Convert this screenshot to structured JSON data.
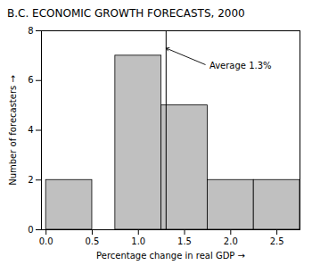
{
  "chart_data": {
    "type": "bar",
    "title": "B.C. ECONOMIC GROWTH FORECASTS, 2000",
    "xlabel": "Percentage change in real GDP",
    "ylabel": "Number of forecasters",
    "x": [
      0.0,
      0.75,
      1.25,
      1.75,
      2.25
    ],
    "x_end": [
      0.5,
      1.25,
      1.75,
      2.25,
      2.75
    ],
    "values": [
      2,
      7,
      5,
      2,
      2
    ],
    "color": "#c0c0c0",
    "reference_line": {
      "x": 1.3
    },
    "annotations": [
      {
        "text": "Average 1.3%",
        "x": 1.75,
        "y": 6.6,
        "arrow_x": 1.3,
        "arrow_y": 7.3
      }
    ],
    "xlim": [
      -0.05,
      2.75
    ],
    "ylim": [
      0,
      8
    ],
    "xticks": [
      {
        "value": 0,
        "label": "0.0"
      },
      {
        "value": 0.5,
        "label": "0.5"
      },
      {
        "value": 1,
        "label": "1.0"
      },
      {
        "value": 1.5,
        "label": "1.5"
      },
      {
        "value": 2,
        "label": "2.0"
      },
      {
        "value": 2.5,
        "label": "2.5"
      }
    ],
    "yticks": [
      0,
      2,
      4,
      6,
      8
    ],
    "grid": false
  }
}
